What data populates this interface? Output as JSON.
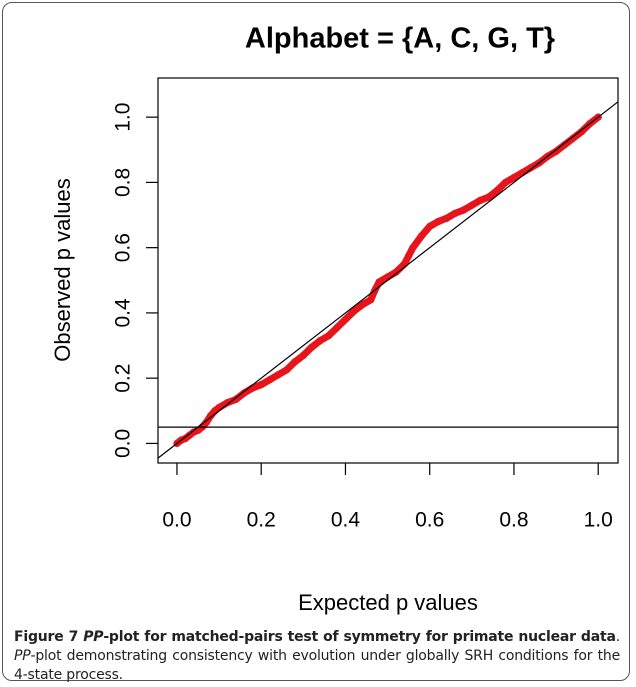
{
  "chart_data": {
    "type": "scatter",
    "title": "Alphabet = {A, C, G, T}",
    "xlabel": "Expected p values",
    "ylabel": "Observed p values",
    "xlim": [
      -0.045,
      1.047
    ],
    "ylim": [
      -0.06,
      1.12
    ],
    "xticks": [
      {
        "value": 0,
        "label": "0.0"
      },
      0.2,
      0.4,
      0.6,
      0.8,
      {
        "value": 1,
        "label": "1.0"
      }
    ],
    "yticks": [
      {
        "value": 0,
        "label": "0.0"
      },
      0.2,
      0.4,
      0.6,
      0.8,
      {
        "value": 1,
        "label": "1.0"
      }
    ],
    "hline": 0.05,
    "diagonal": true,
    "series": [
      {
        "color": "#e8141c",
        "x": [
          0.0,
          0.01,
          0.02,
          0.03,
          0.04,
          0.05,
          0.06,
          0.07,
          0.08,
          0.09,
          0.1,
          0.12,
          0.14,
          0.16,
          0.18,
          0.2,
          0.22,
          0.24,
          0.26,
          0.28,
          0.3,
          0.32,
          0.34,
          0.36,
          0.38,
          0.4,
          0.42,
          0.44,
          0.46,
          0.47,
          0.48,
          0.5,
          0.52,
          0.54,
          0.55,
          0.56,
          0.58,
          0.6,
          0.62,
          0.64,
          0.66,
          0.68,
          0.7,
          0.72,
          0.74,
          0.76,
          0.78,
          0.8,
          0.82,
          0.84,
          0.86,
          0.88,
          0.9,
          0.92,
          0.94,
          0.96,
          0.98,
          1.0
        ],
        "values": [
          0.0,
          0.01,
          0.015,
          0.025,
          0.035,
          0.04,
          0.05,
          0.065,
          0.085,
          0.1,
          0.11,
          0.125,
          0.135,
          0.155,
          0.17,
          0.18,
          0.195,
          0.21,
          0.225,
          0.25,
          0.27,
          0.295,
          0.315,
          0.33,
          0.355,
          0.38,
          0.405,
          0.425,
          0.44,
          0.47,
          0.495,
          0.51,
          0.525,
          0.55,
          0.575,
          0.6,
          0.635,
          0.665,
          0.68,
          0.69,
          0.705,
          0.715,
          0.73,
          0.745,
          0.755,
          0.775,
          0.8,
          0.815,
          0.83,
          0.845,
          0.86,
          0.88,
          0.895,
          0.915,
          0.935,
          0.955,
          0.98,
          1.0
        ]
      }
    ]
  },
  "caption": {
    "figure": "Figure 7",
    "title_italic": "PP",
    "title_rest": "-plot for matched-pairs test of symmetry for primate nuclear data",
    "title_end": ".",
    "text_italic": "PP",
    "text_rest": "-plot demonstrating consistency with evolution under globally SRH conditions for the 4-state process."
  }
}
